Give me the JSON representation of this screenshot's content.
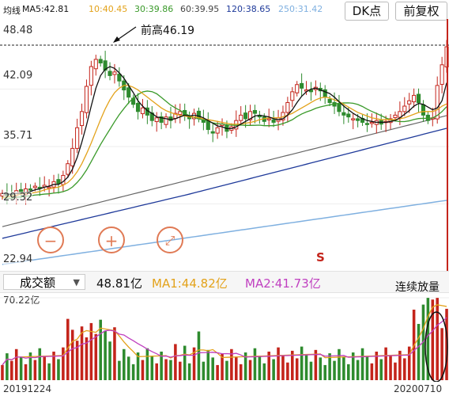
{
  "toolbar": {
    "ma_label": "均线",
    "ma5": "MA5:42.81",
    "ma10": "10:40.45",
    "ma30": "30:39.86",
    "ma60": "60:39.95",
    "ma120": "120:38.65",
    "ma250": "250:31.42",
    "dk_button": "DK点",
    "fq_button": "前复权"
  },
  "colors": {
    "ma5": "#111111",
    "ma10": "#e3a21a",
    "ma30": "#3a9a2a",
    "ma60": "#666666",
    "ma120": "#1f3a9a",
    "ma250": "#7fb0e0",
    "up": "#c4241b",
    "down": "#2e8b2e",
    "accent": "#e07a55"
  },
  "price_axis": {
    "labels": [
      "48.48",
      "42.09",
      "35.71",
      "29.32",
      "22.94"
    ]
  },
  "annotations": {
    "prev_high": "前高46.19",
    "s_mark": "S",
    "volume_note": "连续放量"
  },
  "controls": {
    "zoom_out": "−",
    "zoom_in": "+",
    "fullscreen": "⤢"
  },
  "volume_panel": {
    "selector": "成交额",
    "value": "48.81亿",
    "ma1": "MA1:44.82亿",
    "ma2": "MA2:41.73亿",
    "axis_top": "70.22亿"
  },
  "dates": {
    "start": "20191224",
    "end": "20200710"
  },
  "chart_data": {
    "type": "candlestick",
    "ylim": [
      22.94,
      48.48
    ],
    "prev_high": 46.19,
    "closes": [
      30.5,
      30.2,
      30.4,
      30.8,
      30.6,
      31.0,
      30.9,
      31.3,
      31.1,
      31.4,
      31.2,
      31.8,
      31.6,
      32.5,
      33.8,
      35.5,
      37.8,
      39.6,
      42.4,
      44.6,
      45.4,
      45.0,
      44.2,
      43.6,
      44.0,
      43.0,
      42.0,
      41.2,
      40.4,
      39.6,
      40.0,
      39.2,
      38.6,
      38.9,
      38.4,
      39.0,
      38.6,
      39.4,
      39.6,
      39.2,
      38.8,
      39.4,
      38.8,
      38.4,
      37.6,
      37.2,
      37.8,
      38.2,
      37.4,
      37.9,
      38.6,
      39.2,
      38.8,
      39.6,
      39.4,
      39.0,
      38.5,
      38.8,
      38.4,
      38.9,
      39.5,
      40.6,
      41.8,
      42.6,
      42.2,
      42.0,
      41.8,
      42.3,
      41.9,
      41.2,
      40.6,
      40.2,
      39.6,
      39.2,
      39.0,
      38.8,
      38.6,
      38.4,
      38.2,
      38.4,
      38.6,
      38.2,
      38.5,
      38.8,
      39.2,
      39.6,
      40.2,
      40.8,
      41.4,
      40.6,
      39.2,
      38.6,
      38.9,
      42.5,
      44.8,
      46.8
    ],
    "ma5": [
      30.5,
      30.4,
      30.4,
      30.5,
      30.5,
      30.6,
      30.7,
      30.9,
      31.0,
      31.2,
      31.3,
      31.5,
      31.5,
      31.8,
      32.3,
      33.2,
      34.5,
      36.2,
      38.1,
      40.2,
      42.2,
      43.6,
      44.3,
      44.6,
      44.4,
      43.9,
      43.3,
      42.5,
      41.7,
      40.8,
      40.2,
      39.7,
      39.4,
      39.0,
      38.9,
      38.8,
      38.7,
      38.8,
      39.0,
      39.2,
      39.1,
      39.2,
      39.1,
      38.9,
      38.6,
      38.3,
      38.0,
      37.9,
      37.7,
      37.7,
      37.9,
      38.2,
      38.5,
      38.8,
      39.1,
      39.2,
      39.1,
      39.0,
      38.8,
      38.7,
      38.8,
      39.2,
      39.8,
      40.6,
      41.3,
      41.8,
      42.1,
      42.2,
      42.0,
      41.8,
      41.6,
      41.2,
      40.7,
      40.2,
      39.8,
      39.4,
      39.1,
      38.8,
      38.6,
      38.5,
      38.4,
      38.4,
      38.4,
      38.5,
      38.6,
      38.9,
      39.3,
      39.7,
      40.2,
      40.5,
      40.4,
      40.1,
      39.8,
      40.0,
      40.8,
      42.8
    ],
    "ma10": [
      30.0,
      30.1,
      30.2,
      30.3,
      30.4,
      30.5,
      30.5,
      30.6,
      30.7,
      30.9,
      31.0,
      31.1,
      31.2,
      31.4,
      31.7,
      32.2,
      32.9,
      33.8,
      34.9,
      36.1,
      37.4,
      38.7,
      39.9,
      40.9,
      41.7,
      42.2,
      42.5,
      42.5,
      42.3,
      42.0,
      41.6,
      41.2,
      40.8,
      40.4,
      40.0,
      39.7,
      39.5,
      39.3,
      39.2,
      39.1,
      39.0,
      39.0,
      38.9,
      38.8,
      38.7,
      38.6,
      38.5,
      38.4,
      38.3,
      38.2,
      38.2,
      38.2,
      38.3,
      38.4,
      38.5,
      38.7,
      38.8,
      38.9,
      38.9,
      38.9,
      39.0,
      39.2,
      39.4,
      39.7,
      40.0,
      40.3,
      40.6,
      40.9,
      41.1,
      41.2,
      41.1,
      40.9,
      40.7,
      40.4,
      40.1,
      39.8,
      39.5,
      39.3,
      39.1,
      38.9,
      38.8,
      38.7,
      38.7,
      38.7,
      38.7,
      38.8,
      38.9,
      39.1,
      39.3,
      39.5,
      39.6,
      39.6,
      39.6,
      39.8,
      40.2,
      40.45
    ]
  }
}
